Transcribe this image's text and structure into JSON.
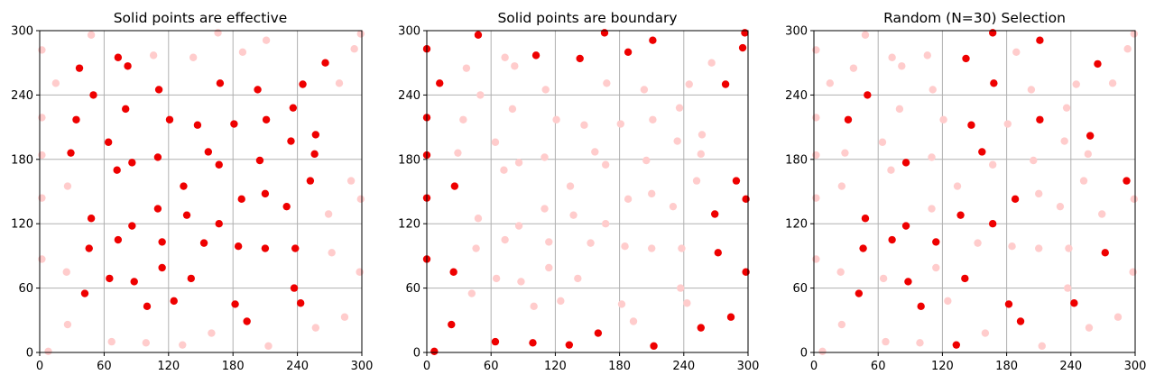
{
  "colors": {
    "point_solid": "#ee0000",
    "point_faded": "#ffcccc",
    "grid": "#b0b0b0"
  },
  "chart_data": [
    {
      "type": "scatter",
      "title": "Solid points are effective",
      "xlabel": "",
      "ylabel": "",
      "xlim": [
        0,
        300
      ],
      "ylim": [
        0,
        300
      ],
      "xticks": [
        0,
        60,
        120,
        180,
        240,
        300
      ],
      "yticks": [
        0,
        60,
        120,
        180,
        240,
        300
      ],
      "grid": true,
      "series": [
        {
          "style": "solid",
          "points": [
            [
              37,
              265
            ],
            [
              73,
              275
            ],
            [
              82,
              267
            ],
            [
              50,
              240
            ],
            [
              111,
              245
            ],
            [
              168,
              251
            ],
            [
              203,
              245
            ],
            [
              245,
              250
            ],
            [
              266,
              270
            ],
            [
              80,
              227
            ],
            [
              34,
              217
            ],
            [
              121,
              217
            ],
            [
              147,
              212
            ],
            [
              181,
              213
            ],
            [
              211,
              217
            ],
            [
              236,
              228
            ],
            [
              29,
              186
            ],
            [
              64,
              196
            ],
            [
              72,
              170
            ],
            [
              86,
              177
            ],
            [
              110,
              182
            ],
            [
              157,
              187
            ],
            [
              167,
              175
            ],
            [
              205,
              179
            ],
            [
              234,
              197
            ],
            [
              257,
              203
            ],
            [
              256,
              185
            ],
            [
              134,
              155
            ],
            [
              252,
              160
            ],
            [
              110,
              134
            ],
            [
              137,
              128
            ],
            [
              167,
              120
            ],
            [
              188,
              143
            ],
            [
              210,
              148
            ],
            [
              230,
              136
            ],
            [
              48,
              125
            ],
            [
              86,
              118
            ],
            [
              46,
              97
            ],
            [
              73,
              105
            ],
            [
              114,
              103
            ],
            [
              153,
              102
            ],
            [
              185,
              99
            ],
            [
              210,
              97
            ],
            [
              238,
              97
            ],
            [
              114,
              79
            ],
            [
              141,
              69
            ],
            [
              65,
              69
            ],
            [
              88,
              66
            ],
            [
              42,
              55
            ],
            [
              125,
              48
            ],
            [
              100,
              43
            ],
            [
              182,
              45
            ],
            [
              237,
              60
            ],
            [
              243,
              46
            ],
            [
              193,
              29
            ]
          ]
        },
        {
          "style": "faded",
          "points": [
            [
              2,
              282
            ],
            [
              48,
              296
            ],
            [
              106,
              277
            ],
            [
              143,
              275
            ],
            [
              166,
              298
            ],
            [
              189,
              280
            ],
            [
              211,
              291
            ],
            [
              293,
              283
            ],
            [
              299,
              297
            ],
            [
              15,
              251
            ],
            [
              279,
              251
            ],
            [
              2,
              219
            ],
            [
              2,
              184
            ],
            [
              26,
              155
            ],
            [
              2,
              144
            ],
            [
              269,
              129
            ],
            [
              290,
              160
            ],
            [
              299,
              143
            ],
            [
              272,
              93
            ],
            [
              2,
              87
            ],
            [
              298,
              75
            ],
            [
              25,
              75
            ],
            [
              26,
              26
            ],
            [
              8,
              1
            ],
            [
              67,
              10
            ],
            [
              99,
              9
            ],
            [
              133,
              7
            ],
            [
              160,
              18
            ],
            [
              213,
              6
            ],
            [
              257,
              23
            ],
            [
              284,
              33
            ]
          ]
        }
      ]
    },
    {
      "type": "scatter",
      "title": "Solid points are boundary",
      "xlabel": "",
      "ylabel": "",
      "xlim": [
        0,
        300
      ],
      "ylim": [
        0,
        300
      ],
      "xticks": [
        0,
        60,
        120,
        180,
        240,
        300
      ],
      "yticks": [
        0,
        60,
        120,
        180,
        240,
        300
      ],
      "grid": true,
      "series": [
        {
          "style": "solid",
          "points": [
            [
              0,
              283
            ],
            [
              48,
              296
            ],
            [
              102,
              277
            ],
            [
              143,
              274
            ],
            [
              166,
              298
            ],
            [
              188,
              280
            ],
            [
              211,
              291
            ],
            [
              297,
              298
            ],
            [
              295,
              284
            ],
            [
              12,
              251
            ],
            [
              279,
              250
            ],
            [
              0,
              219
            ],
            [
              0,
              184
            ],
            [
              26,
              155
            ],
            [
              0,
              144
            ],
            [
              269,
              129
            ],
            [
              289,
              160
            ],
            [
              298,
              143
            ],
            [
              272,
              93
            ],
            [
              0,
              87
            ],
            [
              298,
              75
            ],
            [
              25,
              75
            ],
            [
              23,
              26
            ],
            [
              7,
              1
            ],
            [
              64,
              10
            ],
            [
              99,
              9
            ],
            [
              133,
              7
            ],
            [
              160,
              18
            ],
            [
              212,
              6
            ],
            [
              256,
              23
            ],
            [
              284,
              33
            ]
          ]
        },
        {
          "style": "faded",
          "points": [
            [
              37,
              265
            ],
            [
              73,
              275
            ],
            [
              82,
              267
            ],
            [
              50,
              240
            ],
            [
              111,
              245
            ],
            [
              168,
              251
            ],
            [
              203,
              245
            ],
            [
              245,
              250
            ],
            [
              266,
              270
            ],
            [
              80,
              227
            ],
            [
              34,
              217
            ],
            [
              121,
              217
            ],
            [
              147,
              212
            ],
            [
              181,
              213
            ],
            [
              211,
              217
            ],
            [
              236,
              228
            ],
            [
              29,
              186
            ],
            [
              64,
              196
            ],
            [
              72,
              170
            ],
            [
              86,
              177
            ],
            [
              110,
              182
            ],
            [
              157,
              187
            ],
            [
              167,
              175
            ],
            [
              205,
              179
            ],
            [
              234,
              197
            ],
            [
              257,
              203
            ],
            [
              256,
              185
            ],
            [
              134,
              155
            ],
            [
              252,
              160
            ],
            [
              110,
              134
            ],
            [
              137,
              128
            ],
            [
              167,
              120
            ],
            [
              188,
              143
            ],
            [
              210,
              148
            ],
            [
              230,
              136
            ],
            [
              48,
              125
            ],
            [
              86,
              118
            ],
            [
              46,
              97
            ],
            [
              73,
              105
            ],
            [
              114,
              103
            ],
            [
              153,
              102
            ],
            [
              185,
              99
            ],
            [
              210,
              97
            ],
            [
              238,
              97
            ],
            [
              114,
              79
            ],
            [
              141,
              69
            ],
            [
              65,
              69
            ],
            [
              88,
              66
            ],
            [
              42,
              55
            ],
            [
              125,
              48
            ],
            [
              100,
              43
            ],
            [
              182,
              45
            ],
            [
              237,
              60
            ],
            [
              243,
              46
            ],
            [
              193,
              29
            ]
          ]
        }
      ]
    },
    {
      "type": "scatter",
      "title": "Random (N=30) Selection",
      "xlabel": "",
      "ylabel": "",
      "xlim": [
        0,
        300
      ],
      "ylim": [
        0,
        300
      ],
      "xticks": [
        0,
        60,
        120,
        180,
        240,
        300
      ],
      "yticks": [
        0,
        60,
        120,
        180,
        240,
        300
      ],
      "grid": true,
      "series": [
        {
          "style": "solid",
          "points": [
            [
              167,
              298
            ],
            [
              142,
              274
            ],
            [
              211,
              291
            ],
            [
              50,
              240
            ],
            [
              168,
              251
            ],
            [
              265,
              269
            ],
            [
              32,
              217
            ],
            [
              147,
              212
            ],
            [
              211,
              217
            ],
            [
              86,
              177
            ],
            [
              157,
              187
            ],
            [
              258,
              202
            ],
            [
              188,
              143
            ],
            [
              292,
              160
            ],
            [
              48,
              125
            ],
            [
              137,
              128
            ],
            [
              167,
              120
            ],
            [
              86,
              118
            ],
            [
              46,
              97
            ],
            [
              73,
              105
            ],
            [
              114,
              103
            ],
            [
              272,
              93
            ],
            [
              141,
              69
            ],
            [
              88,
              66
            ],
            [
              42,
              55
            ],
            [
              100,
              43
            ],
            [
              182,
              45
            ],
            [
              243,
              46
            ],
            [
              193,
              29
            ],
            [
              133,
              7
            ]
          ]
        },
        {
          "style": "faded",
          "points": [
            [
              2,
              282
            ],
            [
              48,
              296
            ],
            [
              106,
              277
            ],
            [
              189,
              280
            ],
            [
              299,
              297
            ],
            [
              293,
              283
            ],
            [
              37,
              265
            ],
            [
              73,
              275
            ],
            [
              82,
              267
            ],
            [
              15,
              251
            ],
            [
              111,
              245
            ],
            [
              203,
              245
            ],
            [
              245,
              250
            ],
            [
              279,
              251
            ],
            [
              2,
              219
            ],
            [
              80,
              227
            ],
            [
              121,
              217
            ],
            [
              181,
              213
            ],
            [
              236,
              228
            ],
            [
              2,
              184
            ],
            [
              29,
              186
            ],
            [
              64,
              196
            ],
            [
              72,
              170
            ],
            [
              110,
              182
            ],
            [
              167,
              175
            ],
            [
              205,
              179
            ],
            [
              234,
              197
            ],
            [
              256,
              185
            ],
            [
              26,
              155
            ],
            [
              2,
              144
            ],
            [
              134,
              155
            ],
            [
              252,
              160
            ],
            [
              110,
              134
            ],
            [
              210,
              148
            ],
            [
              230,
              136
            ],
            [
              269,
              129
            ],
            [
              299,
              143
            ],
            [
              2,
              87
            ],
            [
              25,
              75
            ],
            [
              65,
              69
            ],
            [
              114,
              79
            ],
            [
              125,
              48
            ],
            [
              153,
              102
            ],
            [
              185,
              99
            ],
            [
              210,
              97
            ],
            [
              238,
              97
            ],
            [
              237,
              60
            ],
            [
              298,
              75
            ],
            [
              26,
              26
            ],
            [
              8,
              1
            ],
            [
              67,
              10
            ],
            [
              99,
              9
            ],
            [
              160,
              18
            ],
            [
              213,
              6
            ],
            [
              257,
              23
            ],
            [
              284,
              33
            ]
          ]
        }
      ]
    }
  ]
}
